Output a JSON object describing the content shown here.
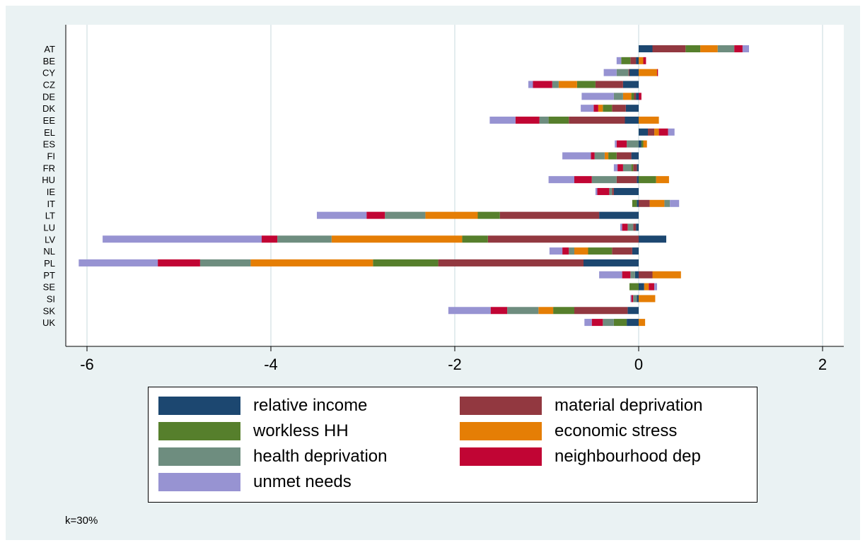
{
  "chart_data": {
    "type": "bar",
    "orientation": "horizontal",
    "stacked": true,
    "stack_mode": "diverging",
    "categories": [
      "AT",
      "BE",
      "CY",
      "CZ",
      "DE",
      "DK",
      "EE",
      "EL",
      "ES",
      "FI",
      "FR",
      "HU",
      "IE",
      "IT",
      "LT",
      "LU",
      "LV",
      "NL",
      "PL",
      "PT",
      "SE",
      "SI",
      "SK",
      "UK"
    ],
    "series": [
      {
        "name": "relative income",
        "color": "#1c4770",
        "values": [
          0.15,
          -0.03,
          -0.1,
          -0.17,
          -0.03,
          -0.14,
          -0.15,
          0.1,
          0.03,
          -0.08,
          -0.02,
          -0.02,
          -0.27,
          -0.02,
          -0.43,
          -0.03,
          0.3,
          -0.07,
          -0.6,
          -0.04,
          0.06,
          -0.02,
          -0.12,
          -0.13
        ]
      },
      {
        "name": "material deprivation",
        "color": "#923840",
        "values": [
          0.36,
          -0.06,
          -0.01,
          -0.3,
          -0.02,
          -0.15,
          -0.61,
          0.07,
          0.0,
          -0.16,
          -0.04,
          -0.22,
          -0.02,
          0.12,
          -1.08,
          -0.03,
          -1.64,
          -0.22,
          -1.58,
          0.15,
          0.0,
          0.0,
          -0.58,
          0.0
        ]
      },
      {
        "name": "workless HH",
        "color": "#567f2c",
        "values": [
          0.16,
          -0.1,
          0.0,
          -0.2,
          -0.03,
          -0.1,
          -0.22,
          0.0,
          0.02,
          -0.09,
          -0.02,
          0.19,
          0.0,
          -0.05,
          -0.24,
          0.0,
          -0.28,
          -0.26,
          -0.71,
          0.0,
          -0.1,
          0.0,
          -0.23,
          -0.14
        ]
      },
      {
        "name": "economic stress",
        "color": "#e57e05",
        "values": [
          0.19,
          0.05,
          0.2,
          -0.2,
          -0.09,
          -0.05,
          0.22,
          0.05,
          0.04,
          -0.04,
          0.0,
          0.14,
          0.0,
          0.16,
          -0.57,
          0.0,
          -1.42,
          -0.15,
          -1.33,
          0.31,
          0.05,
          0.18,
          -0.16,
          0.07
        ]
      },
      {
        "name": "health deprivation",
        "color": "#6e8d7f",
        "values": [
          0.18,
          0.0,
          -0.13,
          -0.07,
          -0.1,
          0.0,
          -0.1,
          0.0,
          -0.13,
          -0.11,
          -0.09,
          -0.27,
          -0.03,
          0.06,
          -0.44,
          -0.06,
          -0.59,
          -0.06,
          -0.55,
          -0.05,
          0.0,
          -0.04,
          -0.34,
          -0.12
        ]
      },
      {
        "name": "neighbourhood dep",
        "color": "#c10534",
        "values": [
          0.09,
          0.03,
          0.01,
          -0.21,
          0.03,
          -0.05,
          -0.26,
          0.1,
          -0.11,
          -0.04,
          -0.06,
          -0.19,
          -0.13,
          0.0,
          -0.2,
          -0.06,
          -0.17,
          -0.07,
          -0.46,
          -0.09,
          0.06,
          -0.02,
          -0.18,
          -0.12
        ]
      },
      {
        "name": "unmet needs",
        "color": "#9793d2",
        "values": [
          0.07,
          -0.05,
          -0.14,
          -0.05,
          -0.35,
          -0.14,
          -0.28,
          0.07,
          -0.02,
          -0.31,
          -0.04,
          -0.28,
          -0.02,
          0.1,
          -0.54,
          -0.02,
          -1.73,
          -0.14,
          -0.86,
          -0.25,
          0.03,
          -0.01,
          -0.46,
          -0.08
        ]
      }
    ],
    "xlim": [
      -6.25,
      2.25
    ],
    "xticks": [
      -6,
      -4,
      -2,
      0,
      2
    ],
    "grid": true,
    "legend_position": "bottom",
    "xlabel": "",
    "ylabel": "",
    "title": ""
  },
  "note": "k=30%"
}
